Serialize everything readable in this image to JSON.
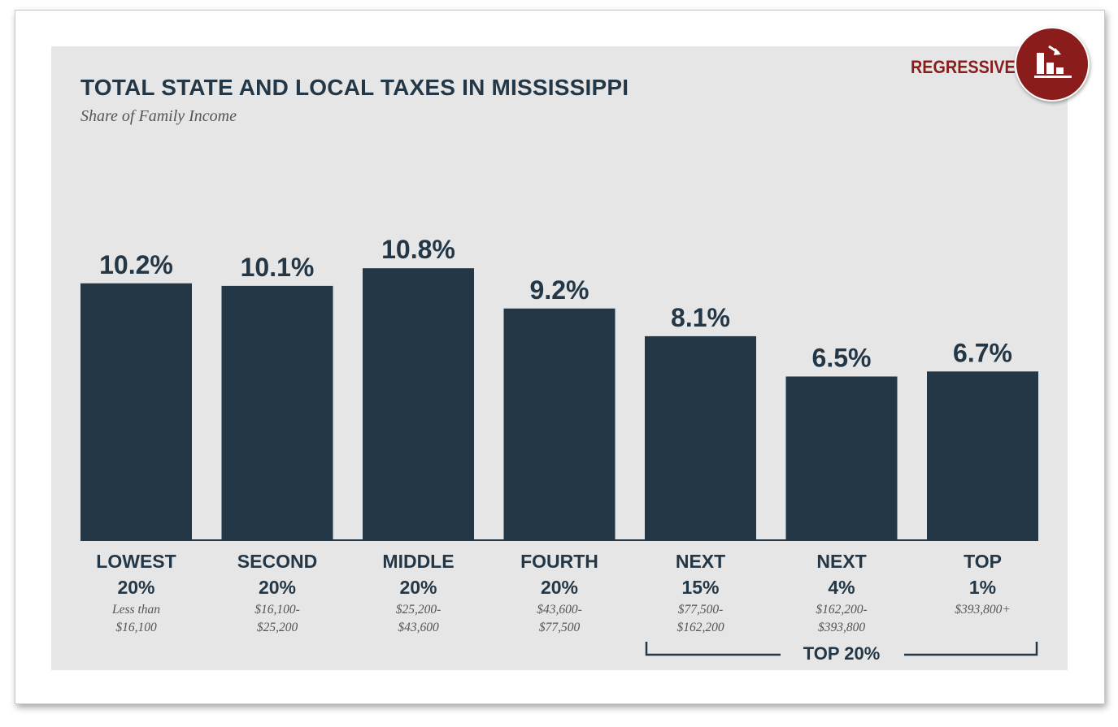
{
  "header": {
    "title": "TOTAL STATE AND LOCAL TAXES IN MISSISSIPPI",
    "subtitle": "Share of Family Income",
    "badge_label": "REGRESSIVE",
    "badge_icon": "regressive-chart-icon"
  },
  "colors": {
    "bar": "#233746",
    "accent": "#8b1c1c",
    "panel": "#e6e6e6",
    "text": "#233746"
  },
  "chart_data": {
    "type": "bar",
    "title": "TOTAL STATE AND LOCAL TAXES IN MISSISSIPPI",
    "subtitle": "Share of Family Income",
    "categories": [
      "LOWEST 20%",
      "SECOND 20%",
      "MIDDLE 20%",
      "FOURTH 20%",
      "NEXT 15%",
      "NEXT 4%",
      "TOP 1%"
    ],
    "values": [
      10.2,
      10.1,
      10.8,
      9.2,
      8.1,
      6.5,
      6.7
    ],
    "value_labels": [
      "10.2%",
      "10.1%",
      "10.8%",
      "9.2%",
      "8.1%",
      "6.5%",
      "6.7%"
    ],
    "category_lines": [
      [
        "LOWEST",
        "20%"
      ],
      [
        "SECOND",
        "20%"
      ],
      [
        "MIDDLE",
        "20%"
      ],
      [
        "FOURTH",
        "20%"
      ],
      [
        "NEXT",
        "15%"
      ],
      [
        "NEXT",
        "4%"
      ],
      [
        "TOP",
        "1%"
      ]
    ],
    "income_ranges": [
      [
        "Less than",
        "$16,100"
      ],
      [
        "$16,100-",
        "$25,200"
      ],
      [
        "$25,200-",
        "$43,600"
      ],
      [
        "$43,600-",
        "$77,500"
      ],
      [
        "$77,500-",
        "$162,200"
      ],
      [
        "$162,200-",
        "$393,800"
      ],
      [
        "$393,800+"
      ]
    ],
    "group_bracket": {
      "label": "TOP 20%",
      "from_index": 4,
      "to_index": 6
    },
    "ylim": [
      0,
      20
    ],
    "grid": false,
    "legend": "none"
  }
}
